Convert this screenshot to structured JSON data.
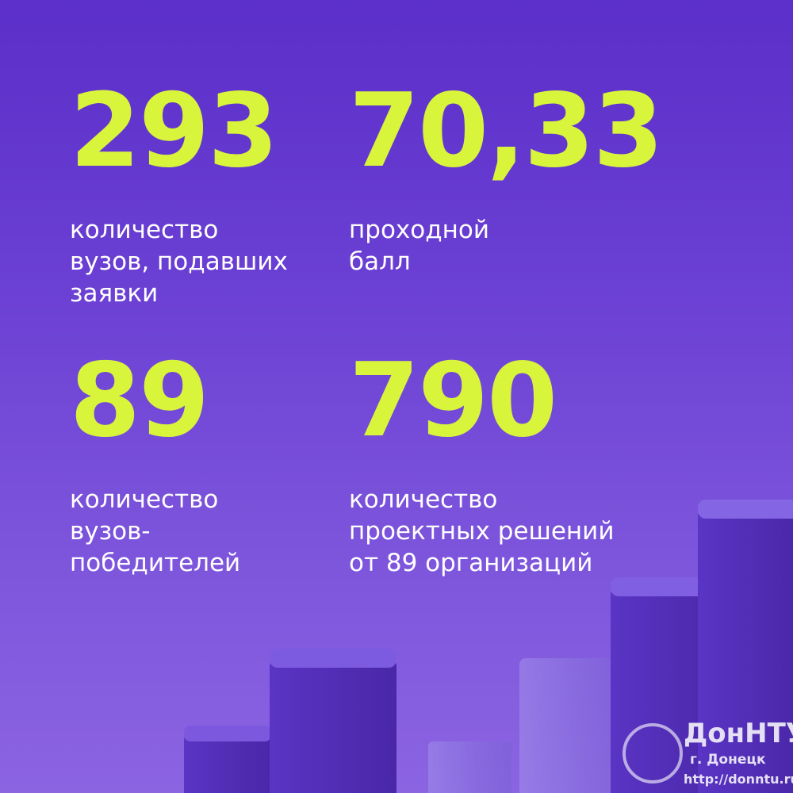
{
  "stats": [
    {
      "value": "293",
      "label": [
        "количество",
        "вузов, подавших",
        "заявки"
      ]
    },
    {
      "value": "70,33",
      "label": [
        "проходной",
        "балл"
      ]
    },
    {
      "value": "89",
      "label": [
        "количество",
        "вузов-",
        "победителей"
      ]
    },
    {
      "value": "790",
      "label": [
        "количество",
        "проектных решений",
        "от 89 организаций"
      ]
    }
  ],
  "watermark": {
    "name": "ДонНТУ",
    "city": "г. Донецк",
    "url": "http://donntu.ru"
  }
}
